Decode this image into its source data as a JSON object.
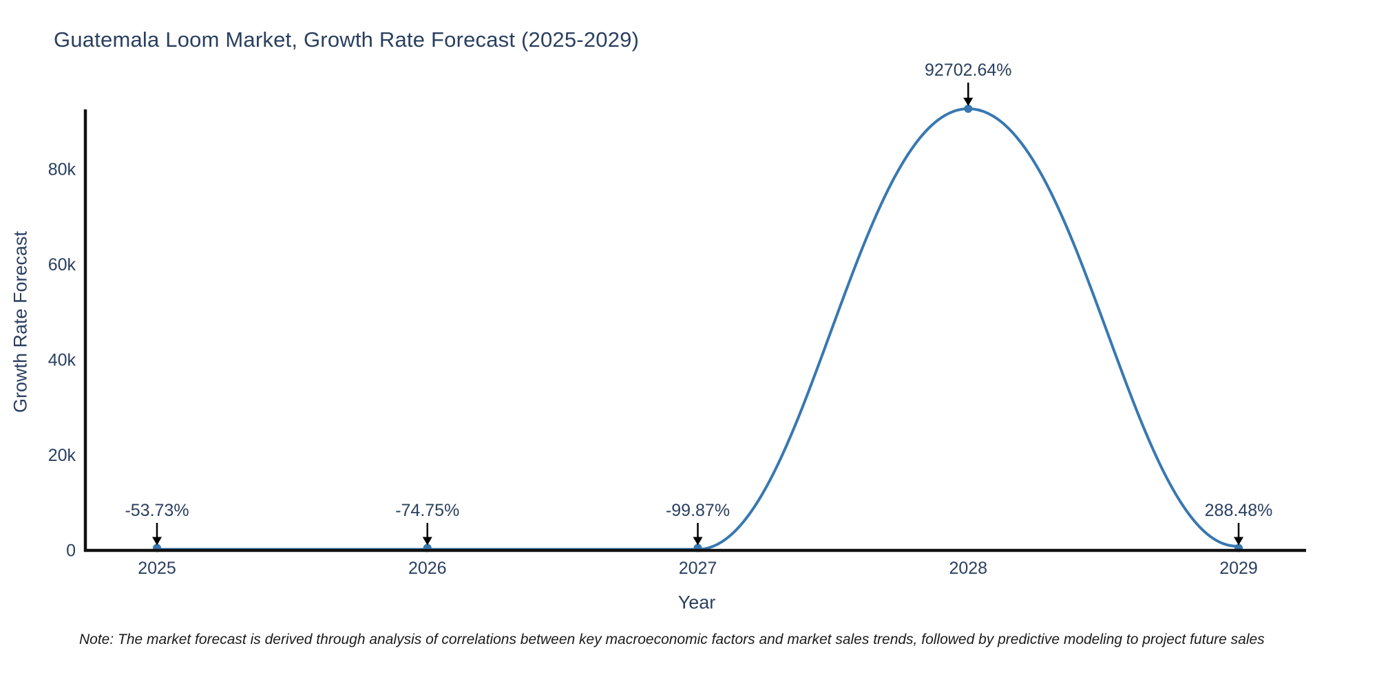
{
  "chart_data": {
    "type": "line",
    "title": "Guatemala Loom Market, Growth Rate Forecast (2025-2029)",
    "xlabel": "Year",
    "ylabel": "Growth Rate Forecast",
    "categories": [
      "2025",
      "2026",
      "2027",
      "2028",
      "2029"
    ],
    "values": [
      -53.73,
      -74.75,
      -99.87,
      92702.64,
      288.48
    ],
    "point_labels": [
      "-53.73%",
      "-74.75%",
      "-99.87%",
      "92702.64%",
      "288.48%"
    ],
    "yticks": {
      "values": [
        0,
        20000,
        40000,
        60000,
        80000
      ],
      "labels": [
        "0",
        "20k",
        "40k",
        "60k",
        "80k"
      ]
    },
    "ylim": [
      0,
      93000
    ],
    "grid": false,
    "legend": "none",
    "line_color": "#3878b0",
    "marker_color": "#3878b0",
    "axis_line_color": "#111111",
    "font_color": "#2a3f5f",
    "annotation_arrow_color": "#000000",
    "note": "Note: The market forecast is derived through analysis of correlations between key macroeconomic factors and market sales trends, followed by predictive modeling to project future sales"
  }
}
